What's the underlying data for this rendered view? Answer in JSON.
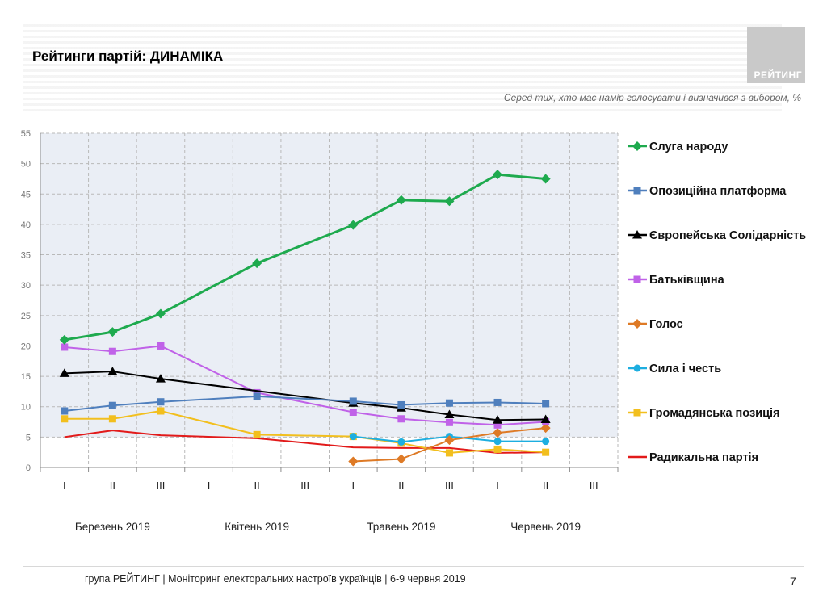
{
  "header": {
    "title": "Рейтинги партій: ДИНАМІКА",
    "logo_text": "РЕЙТИНГ",
    "subtitle": "Серед тих, хто має намір голосувати і визначився з вибором, %"
  },
  "footer": {
    "text": "група РЕЙТИНГ | Моніторинг електоральних настроїв українців  | 6-9 червня 2019",
    "page": "7"
  },
  "chart_data": {
    "type": "line",
    "title": "",
    "ylim": [
      0,
      55
    ],
    "yticks": [
      0,
      5,
      10,
      15,
      20,
      25,
      30,
      35,
      40,
      45,
      50,
      55
    ],
    "x_categories": [
      "I",
      "II",
      "III",
      "I",
      "II",
      "III",
      "I",
      "II",
      "III",
      "I",
      "II",
      "III"
    ],
    "month_labels": [
      {
        "label": "Березень 2019",
        "index": 1
      },
      {
        "label": "Квітень 2019",
        "index": 4
      },
      {
        "label": "Травень 2019",
        "index": 7
      },
      {
        "label": "Червень 2019",
        "index": 10
      }
    ],
    "series": [
      {
        "name": "Слуга народу",
        "color": "#1eaa4e",
        "marker": "diamond",
        "x": [
          0,
          1,
          2,
          4,
          6,
          7,
          8,
          9,
          10
        ],
        "values": [
          21.0,
          22.3,
          25.3,
          33.6,
          39.9,
          44.0,
          43.8,
          48.2,
          47.5
        ]
      },
      {
        "name": "Опозиційна платформа",
        "color": "#4f7fbd",
        "marker": "square",
        "x": [
          0,
          1,
          2,
          4,
          6,
          7,
          8,
          9,
          10
        ],
        "values": [
          9.3,
          10.2,
          10.8,
          11.7,
          10.9,
          10.3,
          10.6,
          10.7,
          10.5
        ]
      },
      {
        "name": "Європейська Солідарність",
        "color": "#000000",
        "marker": "triangle",
        "x": [
          0,
          1,
          2,
          6,
          7,
          8,
          9,
          10
        ],
        "values": [
          15.5,
          15.8,
          14.6,
          10.6,
          9.8,
          8.7,
          7.8,
          7.9
        ]
      },
      {
        "name": "Батьківщина",
        "color": "#c062e8",
        "marker": "square",
        "x": [
          0,
          1,
          2,
          4,
          6,
          7,
          8,
          9,
          10
        ],
        "values": [
          19.8,
          19.1,
          20.0,
          12.3,
          9.1,
          8.0,
          7.4,
          7.0,
          7.5
        ]
      },
      {
        "name": "Голос",
        "color": "#de7a26",
        "marker": "diamond",
        "x": [
          6,
          7,
          8,
          9,
          10
        ],
        "values": [
          1.0,
          1.4,
          4.5,
          5.7,
          6.5
        ]
      },
      {
        "name": "Сила і честь",
        "color": "#1daee0",
        "marker": "circle",
        "x": [
          6,
          7,
          8,
          9,
          10
        ],
        "values": [
          5.1,
          4.2,
          5.1,
          4.3,
          4.3
        ]
      },
      {
        "name": "Громадянська позиція",
        "color": "#f2bf1e",
        "marker": "square",
        "x": [
          0,
          1,
          2,
          4,
          6,
          7,
          8,
          9,
          10
        ],
        "values": [
          8.0,
          8.0,
          9.3,
          5.4,
          5.1,
          4.0,
          2.4,
          3.0,
          2.5
        ]
      },
      {
        "name": "Радикальна партія",
        "color": "#e21a1a",
        "marker": "none",
        "x": [
          0,
          1,
          2,
          4,
          6,
          7,
          8,
          9,
          10
        ],
        "values": [
          5.0,
          6.1,
          5.3,
          4.8,
          3.3,
          3.2,
          3.2,
          2.4,
          2.5
        ]
      }
    ]
  }
}
